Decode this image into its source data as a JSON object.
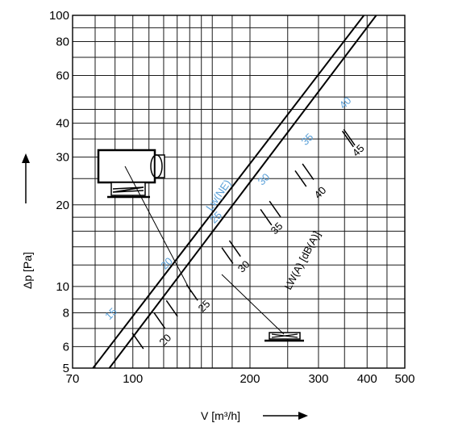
{
  "chart_data": {
    "type": "line",
    "x_scale": "log",
    "y_scale": "log",
    "xlim": [
      70,
      500
    ],
    "ylim": [
      5,
      100
    ],
    "x_ticks": [
      70,
      100,
      200,
      300,
      400,
      500
    ],
    "y_ticks": [
      5,
      6,
      8,
      10,
      20,
      30,
      40,
      60,
      80,
      100
    ],
    "xlabel": "V  [m³/h]",
    "ylabel": "Δp  [Pa]",
    "grid": true,
    "series": [
      {
        "points": [
          [
            79,
            5
          ],
          [
            510,
            163
          ]
        ]
      },
      {
        "points": [
          [
            87,
            5
          ],
          [
            510,
            143
          ]
        ]
      }
    ],
    "sound_annotations": {
      "upper_series_label": "Lw(NE)",
      "upper_color": "#5aa0d8",
      "upper": [
        {
          "label": "15",
          "x": 87,
          "y": 7.5
        },
        {
          "label": "20",
          "x": 121,
          "y": 11.5
        },
        {
          "label": "25",
          "x": 162,
          "y": 17
        },
        {
          "label": "30",
          "x": 215,
          "y": 23.5
        },
        {
          "label": "35",
          "x": 278,
          "y": 33
        },
        {
          "label": "40",
          "x": 348,
          "y": 45
        }
      ],
      "lower_series_label": "LW(A) [dB(A)]",
      "lower_color": "#000000",
      "lower": [
        {
          "label": "20",
          "x": 120,
          "y": 6
        },
        {
          "label": "25",
          "x": 151,
          "y": 8
        },
        {
          "label": "30",
          "x": 191,
          "y": 11.2
        },
        {
          "label": "35",
          "x": 232,
          "y": 15.5
        },
        {
          "label": "40",
          "x": 300,
          "y": 21
        },
        {
          "label": "45",
          "x": 376,
          "y": 30
        }
      ],
      "markers": [
        {
          "x": 103,
          "y": 6.3
        },
        {
          "x": 117,
          "y": 7.5
        },
        {
          "x": 126,
          "y": 8.3
        },
        {
          "x": 142,
          "y": 9.5
        },
        {
          "x": 175,
          "y": 13
        },
        {
          "x": 183,
          "y": 13.8
        },
        {
          "x": 220,
          "y": 18
        },
        {
          "x": 232,
          "y": 19.3
        },
        {
          "x": 270,
          "y": 25
        },
        {
          "x": 282,
          "y": 26.5
        },
        {
          "x": 357,
          "y": 35
        },
        {
          "x": 360,
          "y": 35.5
        }
      ]
    }
  }
}
